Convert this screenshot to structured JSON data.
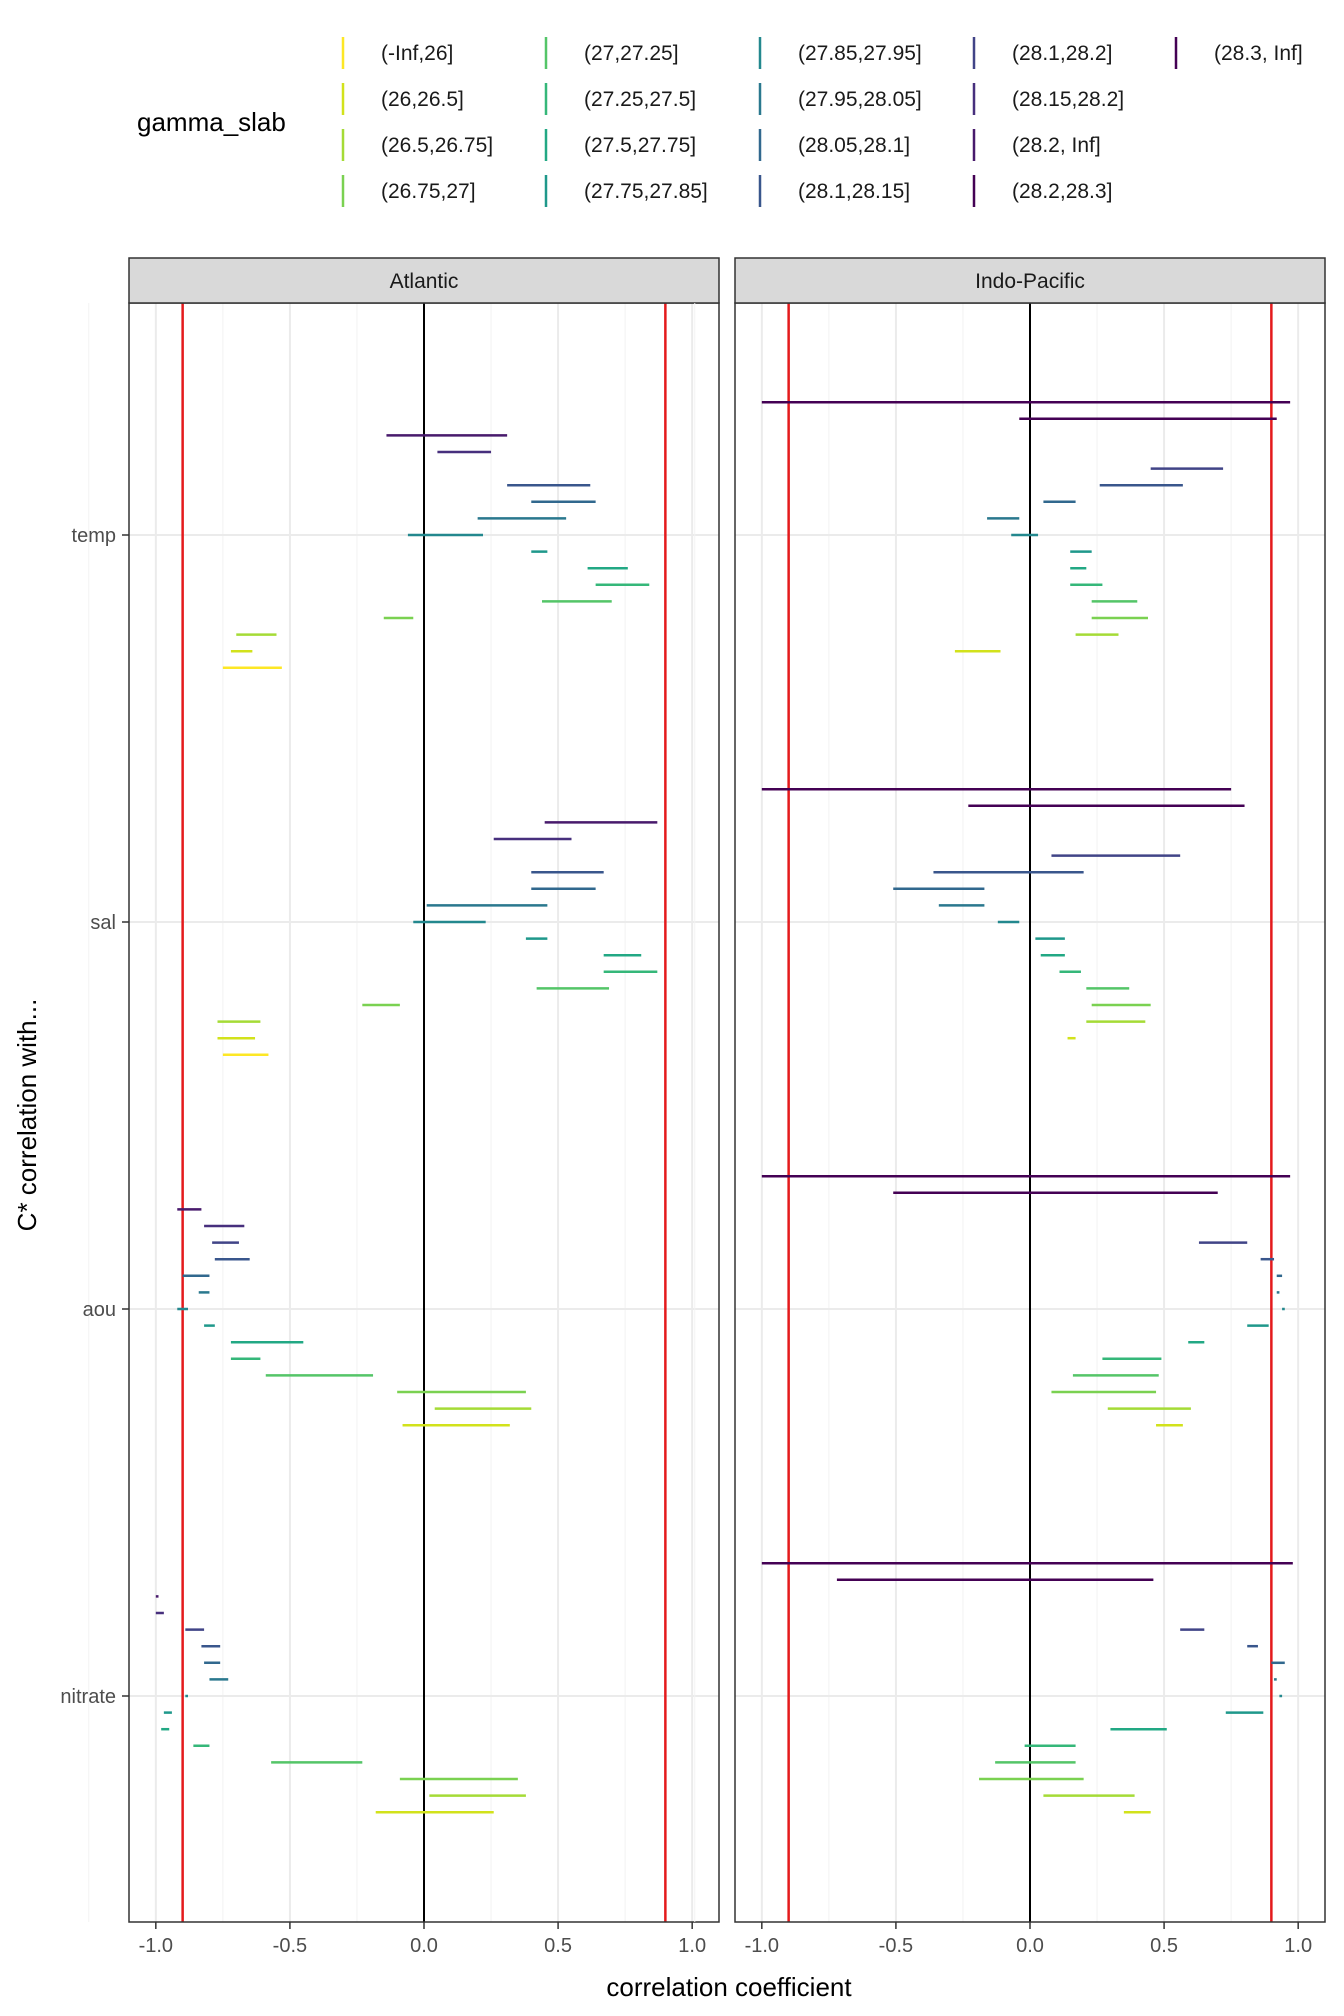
{
  "chart_data": {
    "type": "interval",
    "legend": {
      "title": "gamma_slab",
      "entries": [
        {
          "label": "(-Inf,26]",
          "color": "#FDE725"
        },
        {
          "label": "(26,26.5]",
          "color": "#D2E21B"
        },
        {
          "label": "(26.5,26.75]",
          "color": "#A5DB36"
        },
        {
          "label": "(26.75,27]",
          "color": "#7AD151"
        },
        {
          "label": "(27,27.25]",
          "color": "#54C568"
        },
        {
          "label": "(27.25,27.5]",
          "color": "#35B779"
        },
        {
          "label": "(27.5,27.75]",
          "color": "#22A884"
        },
        {
          "label": "(27.75,27.85]",
          "color": "#1F988B"
        },
        {
          "label": "(27.85,27.95]",
          "color": "#23888E"
        },
        {
          "label": "(27.95,28.05]",
          "color": "#2A788E"
        },
        {
          "label": "(28.05,28.1]",
          "color": "#31688E"
        },
        {
          "label": "(28.1,28.15]",
          "color": "#39568C"
        },
        {
          "label": "(28.1,28.2]",
          "color": "#414487"
        },
        {
          "label": "(28.15,28.2]",
          "color": "#472F7D"
        },
        {
          "label": "(28.2, Inf]",
          "color": "#481A6C"
        },
        {
          "label": "(28.2,28.3]",
          "color": "#440154"
        },
        {
          "label": "(28.3, Inf]",
          "color": "#440154"
        }
      ]
    },
    "xlabel": "correlation coefficient",
    "ylabel": "C* correlation with...",
    "xlim": [
      -1.1,
      1.1
    ],
    "x_ticks": [
      -1.0,
      -0.5,
      0.0,
      0.5,
      1.0
    ],
    "x_tick_labels": [
      "-1.0",
      "-0.5",
      "0.0",
      "0.5",
      "1.0"
    ],
    "reference_lines": {
      "zero": 0,
      "thresholds": [
        -0.9,
        0.9
      ],
      "threshold_color": "#E41A1C"
    },
    "y_categories": [
      "temp",
      "sal",
      "aou",
      "nitrate"
    ],
    "panels": [
      {
        "label": "Atlantic",
        "groups": [
          {
            "var": "temp",
            "intervals": [
              [
                14,
                -0.14,
                0.31
              ],
              [
                13,
                0.05,
                0.25
              ],
              [
                11,
                0.31,
                0.62
              ],
              [
                10,
                0.4,
                0.64
              ],
              [
                9,
                0.2,
                0.53
              ],
              [
                8,
                -0.06,
                0.22
              ],
              [
                7,
                0.4,
                0.46
              ],
              [
                6,
                0.61,
                0.76
              ],
              [
                5,
                0.64,
                0.84
              ],
              [
                4,
                0.44,
                0.7
              ],
              [
                3,
                -0.15,
                -0.04
              ],
              [
                2,
                -0.7,
                -0.55
              ],
              [
                1,
                -0.72,
                -0.64
              ],
              [
                0,
                -0.75,
                -0.53
              ]
            ]
          },
          {
            "var": "sal",
            "intervals": [
              [
                14,
                0.45,
                0.87
              ],
              [
                13,
                0.26,
                0.55
              ],
              [
                11,
                0.4,
                0.67
              ],
              [
                10,
                0.4,
                0.64
              ],
              [
                9,
                0.01,
                0.46
              ],
              [
                8,
                -0.04,
                0.23
              ],
              [
                7,
                0.38,
                0.46
              ],
              [
                6,
                0.67,
                0.81
              ],
              [
                5,
                0.67,
                0.87
              ],
              [
                4,
                0.42,
                0.69
              ],
              [
                3,
                -0.23,
                -0.09
              ],
              [
                2,
                -0.77,
                -0.61
              ],
              [
                1,
                -0.77,
                -0.63
              ],
              [
                0,
                -0.75,
                -0.58
              ]
            ]
          },
          {
            "var": "aou",
            "intervals": [
              [
                14,
                -0.92,
                -0.83
              ],
              [
                13,
                -0.82,
                -0.67
              ],
              [
                12,
                -0.79,
                -0.69
              ],
              [
                11,
                -0.78,
                -0.65
              ],
              [
                10,
                -0.9,
                -0.8
              ],
              [
                9,
                -0.84,
                -0.8
              ],
              [
                8,
                -0.92,
                -0.88
              ],
              [
                7,
                -0.82,
                -0.78
              ],
              [
                6,
                -0.72,
                -0.45
              ],
              [
                5,
                -0.72,
                -0.61
              ],
              [
                4,
                -0.59,
                -0.19
              ],
              [
                3,
                -0.1,
                0.38
              ],
              [
                2,
                0.04,
                0.4
              ],
              [
                1,
                -0.08,
                0.32
              ]
            ]
          },
          {
            "var": "nitrate",
            "intervals": [
              [
                14,
                -1.0,
                -0.99
              ],
              [
                13,
                -1.0,
                -0.97
              ],
              [
                12,
                -0.89,
                -0.82
              ],
              [
                11,
                -0.83,
                -0.76
              ],
              [
                10,
                -0.82,
                -0.76
              ],
              [
                9,
                -0.8,
                -0.73
              ],
              [
                8,
                -0.89,
                -0.88
              ],
              [
                7,
                -0.97,
                -0.94
              ],
              [
                6,
                -0.98,
                -0.95
              ],
              [
                5,
                -0.86,
                -0.8
              ],
              [
                4,
                -0.57,
                -0.23
              ],
              [
                3,
                -0.09,
                0.35
              ],
              [
                2,
                0.02,
                0.38
              ],
              [
                1,
                -0.18,
                0.26
              ]
            ]
          }
        ]
      },
      {
        "label": "Indo-Pacific",
        "groups": [
          {
            "var": "temp",
            "intervals": [
              [
                16,
                -1.0,
                0.97
              ],
              [
                15,
                -0.04,
                0.92
              ],
              [
                12,
                0.45,
                0.72
              ],
              [
                11,
                0.26,
                0.57
              ],
              [
                10,
                0.05,
                0.17
              ],
              [
                9,
                -0.16,
                -0.04
              ],
              [
                8,
                -0.07,
                0.03
              ],
              [
                7,
                0.15,
                0.23
              ],
              [
                6,
                0.15,
                0.21
              ],
              [
                5,
                0.15,
                0.27
              ],
              [
                4,
                0.23,
                0.4
              ],
              [
                3,
                0.23,
                0.44
              ],
              [
                2,
                0.17,
                0.33
              ],
              [
                1,
                -0.28,
                -0.11
              ]
            ]
          },
          {
            "var": "sal",
            "intervals": [
              [
                16,
                -1.0,
                0.75
              ],
              [
                15,
                -0.23,
                0.8
              ],
              [
                12,
                0.08,
                0.56
              ],
              [
                11,
                -0.36,
                0.2
              ],
              [
                10,
                -0.51,
                -0.17
              ],
              [
                9,
                -0.34,
                -0.17
              ],
              [
                8,
                -0.12,
                -0.04
              ],
              [
                7,
                0.02,
                0.13
              ],
              [
                6,
                0.04,
                0.13
              ],
              [
                5,
                0.11,
                0.19
              ],
              [
                4,
                0.21,
                0.37
              ],
              [
                3,
                0.23,
                0.45
              ],
              [
                2,
                0.21,
                0.43
              ],
              [
                1,
                0.14,
                0.17
              ]
            ]
          },
          {
            "var": "aou",
            "intervals": [
              [
                16,
                -1.0,
                0.97
              ],
              [
                15,
                -0.51,
                0.7
              ],
              [
                12,
                0.63,
                0.81
              ],
              [
                11,
                0.86,
                0.91
              ],
              [
                10,
                0.92,
                0.94
              ],
              [
                9,
                0.92,
                0.93
              ],
              [
                8,
                0.94,
                0.95
              ],
              [
                7,
                0.81,
                0.89
              ],
              [
                6,
                0.59,
                0.65
              ],
              [
                5,
                0.27,
                0.49
              ],
              [
                4,
                0.16,
                0.48
              ],
              [
                3,
                0.08,
                0.47
              ],
              [
                2,
                0.29,
                0.6
              ],
              [
                1,
                0.47,
                0.57
              ]
            ]
          },
          {
            "var": "nitrate",
            "intervals": [
              [
                16,
                -1.0,
                0.98
              ],
              [
                15,
                -0.72,
                0.46
              ],
              [
                12,
                0.56,
                0.65
              ],
              [
                11,
                0.81,
                0.85
              ],
              [
                10,
                0.9,
                0.95
              ],
              [
                9,
                0.91,
                0.92
              ],
              [
                8,
                0.93,
                0.94
              ],
              [
                7,
                0.73,
                0.87
              ],
              [
                6,
                0.3,
                0.51
              ],
              [
                5,
                -0.02,
                0.17
              ],
              [
                4,
                -0.13,
                0.17
              ],
              [
                3,
                -0.19,
                0.2
              ],
              [
                2,
                0.05,
                0.39
              ],
              [
                1,
                0.35,
                0.45
              ]
            ]
          }
        ]
      }
    ]
  }
}
